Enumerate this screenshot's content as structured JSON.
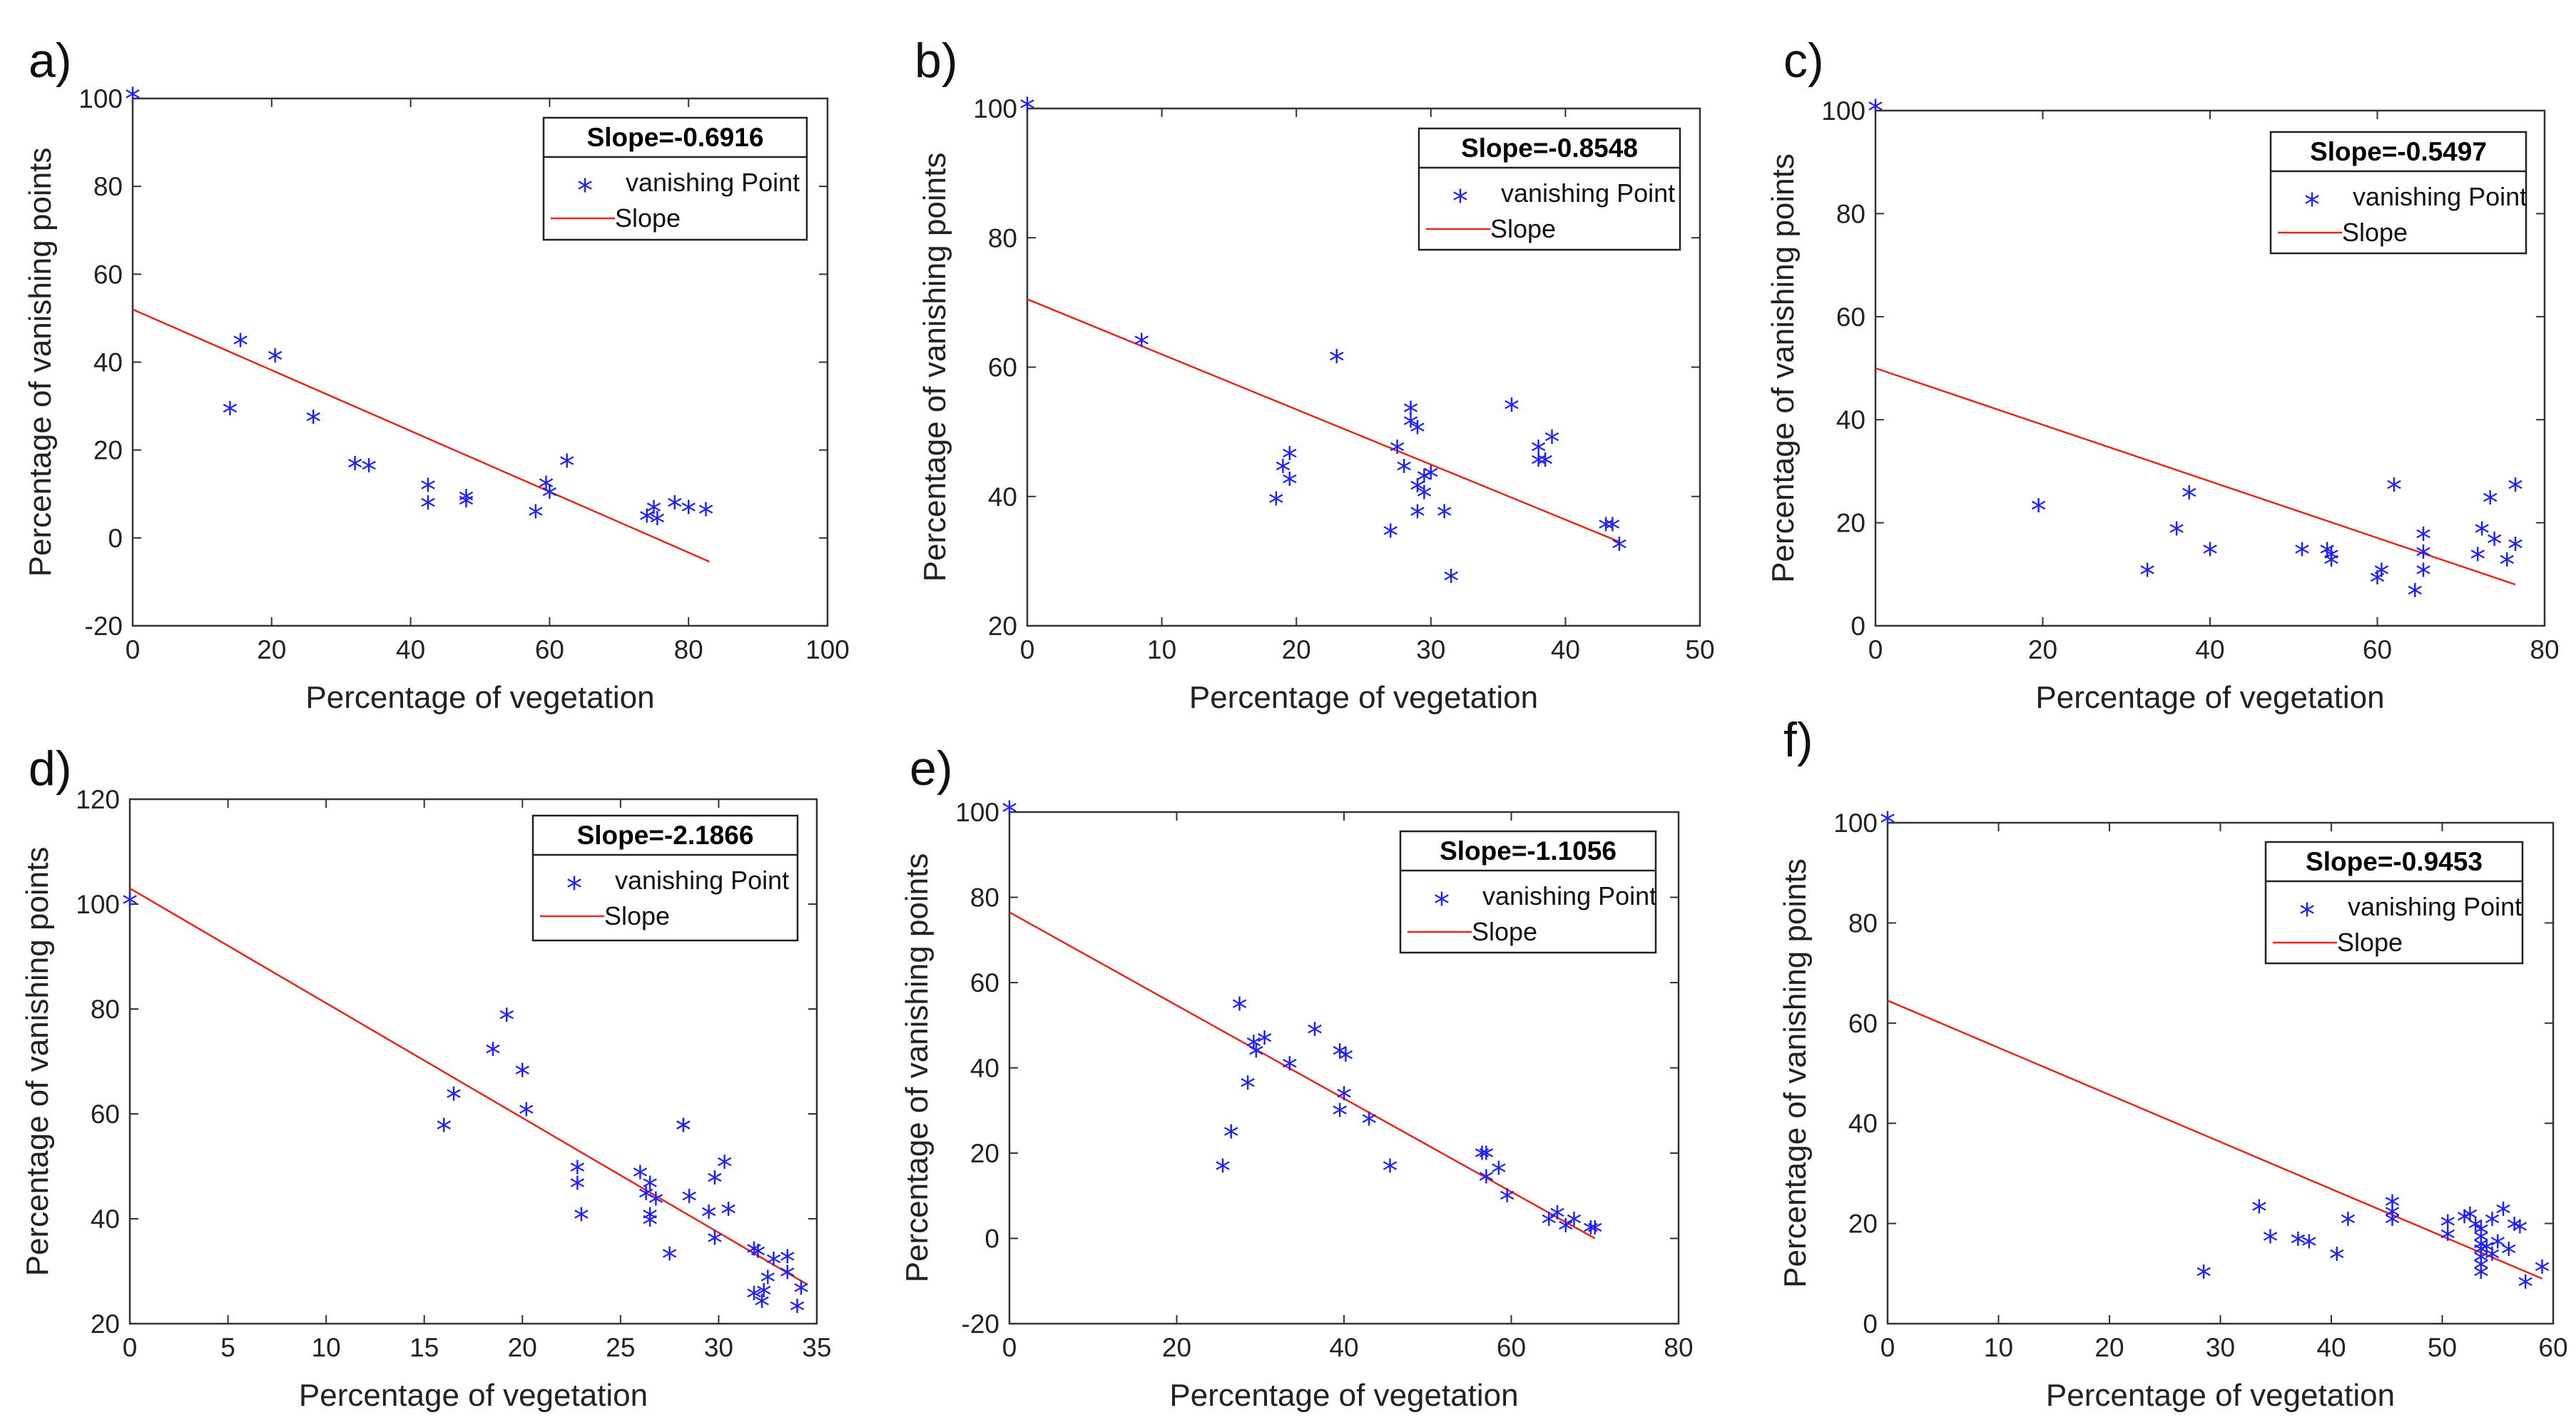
{
  "figure_description": "Six scatter plots (a-f) of percentage of vanishing points vs percentage of vegetation with fitted slope lines",
  "colors": {
    "marker": "#1f1fff",
    "fit_line": "#e8271c",
    "axes": "#333333"
  },
  "chart_data": [
    {
      "type": "scatter",
      "panel": "a)",
      "title": "",
      "xlabel": "Percentage of vegetation",
      "ylabel": "Percentage of vanishing points",
      "xlim": [
        0,
        100
      ],
      "ylim": [
        -20,
        100
      ],
      "xticks": [
        0,
        20,
        40,
        60,
        80,
        100
      ],
      "yticks": [
        -20,
        0,
        20,
        40,
        60,
        80,
        100
      ],
      "legend_title": "Slope=-0.6916",
      "legend_marker_label": "vanishing Point",
      "legend_line_label": "Slope",
      "fit_line": {
        "x": [
          0,
          83
        ],
        "y": [
          52,
          -5.4
        ]
      },
      "points": [
        [
          0,
          100
        ],
        [
          14,
          28.5
        ],
        [
          15.5,
          44
        ],
        [
          20.5,
          40.5
        ],
        [
          26,
          26.5
        ],
        [
          32,
          16
        ],
        [
          34,
          15.5
        ],
        [
          42.5,
          11
        ],
        [
          42.5,
          7
        ],
        [
          48,
          8.5
        ],
        [
          48,
          7.5
        ],
        [
          58,
          5
        ],
        [
          59.5,
          11.5
        ],
        [
          60,
          9.5
        ],
        [
          62.5,
          16.5
        ],
        [
          74,
          4
        ],
        [
          75,
          6
        ],
        [
          75.5,
          3.5
        ],
        [
          78,
          7
        ],
        [
          80,
          6
        ],
        [
          82.5,
          5.5
        ]
      ]
    },
    {
      "type": "scatter",
      "panel": "b)",
      "title": "",
      "xlabel": "Percentage of vegetation",
      "ylabel": "Percentage of vanishing points",
      "xlim": [
        0,
        50
      ],
      "ylim": [
        20,
        100
      ],
      "xticks": [
        0,
        10,
        20,
        30,
        40,
        50
      ],
      "yticks": [
        20,
        40,
        60,
        80,
        100
      ],
      "legend_title": "Slope=-0.8548",
      "legend_marker_label": "vanishing Point",
      "legend_line_label": "Slope",
      "fit_line": {
        "x": [
          0,
          44
        ],
        "y": [
          70.5,
          33
        ]
      },
      "points": [
        [
          0,
          100
        ],
        [
          8.5,
          63.5
        ],
        [
          18.5,
          39
        ],
        [
          19,
          44
        ],
        [
          19.5,
          46
        ],
        [
          19.5,
          42
        ],
        [
          23,
          61
        ],
        [
          27,
          34
        ],
        [
          27.5,
          47
        ],
        [
          28,
          44
        ],
        [
          28.5,
          53
        ],
        [
          28.5,
          51
        ],
        [
          29,
          50
        ],
        [
          29,
          37
        ],
        [
          29,
          41
        ],
        [
          29.5,
          42.5
        ],
        [
          29.5,
          40
        ],
        [
          30,
          43
        ],
        [
          31,
          37
        ],
        [
          31.5,
          27
        ],
        [
          36,
          53.5
        ],
        [
          38,
          45
        ],
        [
          38,
          47
        ],
        [
          38.5,
          45
        ],
        [
          39,
          48.5
        ],
        [
          43,
          35
        ],
        [
          43.5,
          35
        ],
        [
          44,
          32
        ]
      ]
    },
    {
      "type": "scatter",
      "panel": "c)",
      "title": "",
      "xlabel": "Percentage of vegetation",
      "ylabel": "Percentage of vanishing points",
      "xlim": [
        0,
        80
      ],
      "ylim": [
        0,
        100
      ],
      "xticks": [
        0,
        20,
        40,
        60,
        80
      ],
      "yticks": [
        0,
        20,
        40,
        60,
        80,
        100
      ],
      "legend_title": "Slope=-0.5497",
      "legend_marker_label": "vanishing Point",
      "legend_line_label": "Slope",
      "fit_line": {
        "x": [
          0,
          76.5
        ],
        "y": [
          50,
          8
        ]
      },
      "points": [
        [
          0,
          100
        ],
        [
          19.5,
          22.5
        ],
        [
          32.5,
          10
        ],
        [
          36,
          18
        ],
        [
          37.5,
          25
        ],
        [
          40,
          14
        ],
        [
          51,
          14
        ],
        [
          54,
          14
        ],
        [
          54.5,
          13
        ],
        [
          54.5,
          12
        ],
        [
          60,
          8.5
        ],
        [
          60.5,
          10
        ],
        [
          62,
          26.5
        ],
        [
          64.5,
          6
        ],
        [
          65.5,
          17
        ],
        [
          65.5,
          13.5
        ],
        [
          65.5,
          10
        ],
        [
          72,
          13
        ],
        [
          72.5,
          18
        ],
        [
          73.5,
          24
        ],
        [
          74,
          16
        ],
        [
          75.5,
          12
        ],
        [
          76.5,
          15
        ],
        [
          76.5,
          26.5
        ]
      ]
    },
    {
      "type": "scatter",
      "panel": "d)",
      "title": "",
      "xlabel": "Percentage of vegetation",
      "ylabel": "Percentage of vanishing points",
      "xlim": [
        0,
        35
      ],
      "ylim": [
        20,
        120
      ],
      "xticks": [
        0,
        5,
        10,
        15,
        20,
        25,
        30,
        35
      ],
      "yticks": [
        20,
        40,
        60,
        80,
        100,
        120
      ],
      "legend_title": "Slope=-2.1866",
      "legend_marker_label": "vanishing Point",
      "legend_line_label": "Slope",
      "fit_line": {
        "x": [
          0,
          34.5
        ],
        "y": [
          103,
          27.5
        ]
      },
      "points": [
        [
          0,
          100
        ],
        [
          16,
          57
        ],
        [
          16.5,
          63
        ],
        [
          18.5,
          71.5
        ],
        [
          19.2,
          78
        ],
        [
          20,
          67.5
        ],
        [
          20.2,
          60
        ],
        [
          22.8,
          49
        ],
        [
          22.8,
          46
        ],
        [
          23,
          40
        ],
        [
          26,
          48
        ],
        [
          26.3,
          44
        ],
        [
          26.5,
          46
        ],
        [
          26.5,
          40
        ],
        [
          26.5,
          39
        ],
        [
          26.8,
          43
        ],
        [
          27.5,
          32.5
        ],
        [
          28.2,
          57
        ],
        [
          28.2,
          57
        ],
        [
          28.5,
          43.5
        ],
        [
          29.5,
          40.5
        ],
        [
          29.8,
          47
        ],
        [
          29.8,
          35.5
        ],
        [
          30.3,
          50
        ],
        [
          30.5,
          41
        ],
        [
          31.8,
          33.5
        ],
        [
          31.8,
          25
        ],
        [
          32,
          33
        ],
        [
          32.2,
          23.5
        ],
        [
          32.3,
          25.5
        ],
        [
          32.5,
          28
        ],
        [
          32.8,
          31.5
        ],
        [
          33.5,
          32
        ],
        [
          33.5,
          29
        ],
        [
          34,
          22.5
        ],
        [
          34.2,
          26
        ]
      ]
    },
    {
      "type": "scatter",
      "panel": "e)",
      "title": "",
      "xlabel": "Percentage of vegetation",
      "ylabel": "Percentage of vanishing points",
      "xlim": [
        0,
        80
      ],
      "ylim": [
        -20,
        100
      ],
      "xticks": [
        0,
        20,
        40,
        60,
        80
      ],
      "yticks": [
        -20,
        0,
        20,
        40,
        60,
        80,
        100
      ],
      "legend_title": "Slope=-1.1056",
      "legend_marker_label": "vanishing Point",
      "legend_line_label": "Slope",
      "fit_line": {
        "x": [
          0,
          70
        ],
        "y": [
          76.5,
          0
        ]
      },
      "points": [
        [
          0,
          100
        ],
        [
          25.5,
          16
        ],
        [
          26.5,
          24
        ],
        [
          27.5,
          54
        ],
        [
          28.5,
          35.5
        ],
        [
          29.2,
          45
        ],
        [
          29.5,
          43
        ],
        [
          30.5,
          46
        ],
        [
          33.5,
          40
        ],
        [
          36.5,
          48
        ],
        [
          39.5,
          43
        ],
        [
          39.5,
          29
        ],
        [
          40,
          33
        ],
        [
          40.2,
          42
        ],
        [
          43,
          27
        ],
        [
          45.5,
          16
        ],
        [
          56.5,
          19
        ],
        [
          57,
          19
        ],
        [
          57,
          13.5
        ],
        [
          58.5,
          15.5
        ],
        [
          59.5,
          9
        ],
        [
          64.5,
          3.5
        ],
        [
          65.5,
          5
        ],
        [
          66.5,
          2
        ],
        [
          67.5,
          3.5
        ],
        [
          69.5,
          1.5
        ],
        [
          70,
          1.5
        ]
      ]
    },
    {
      "type": "scatter",
      "panel": "f)",
      "title": "",
      "xlabel": "Percentage of vegetation",
      "ylabel": "Percentage of vanishing points",
      "xlim": [
        0,
        60
      ],
      "ylim": [
        0,
        100
      ],
      "xticks": [
        0,
        10,
        20,
        30,
        40,
        50,
        60
      ],
      "yticks": [
        0,
        20,
        40,
        60,
        80,
        100
      ],
      "legend_title": "Slope=-0.9453",
      "legend_marker_label": "vanishing Point",
      "legend_line_label": "Slope",
      "fit_line": {
        "x": [
          0,
          59
        ],
        "y": [
          64.5,
          9
        ]
      },
      "points": [
        [
          0,
          100
        ],
        [
          28.5,
          9.5
        ],
        [
          33.5,
          22.5
        ],
        [
          34.5,
          16.5
        ],
        [
          37,
          16
        ],
        [
          38,
          15.5
        ],
        [
          40.5,
          13
        ],
        [
          41.5,
          20
        ],
        [
          45.5,
          23.5
        ],
        [
          45.5,
          21.5
        ],
        [
          45.5,
          20
        ],
        [
          50.5,
          19.5
        ],
        [
          50.5,
          17
        ],
        [
          52,
          20.5
        ],
        [
          52.5,
          21
        ],
        [
          53,
          19
        ],
        [
          53.5,
          18
        ],
        [
          53.5,
          16.5
        ],
        [
          53.5,
          15
        ],
        [
          53.5,
          14
        ],
        [
          53.5,
          12.5
        ],
        [
          53.5,
          11
        ],
        [
          53.5,
          9.5
        ],
        [
          54,
          14.5
        ],
        [
          54.5,
          20
        ],
        [
          54.5,
          13
        ],
        [
          55,
          15.5
        ],
        [
          55.5,
          22
        ],
        [
          56,
          14
        ],
        [
          56.5,
          19
        ],
        [
          57,
          18.5
        ],
        [
          57.5,
          7.5
        ],
        [
          59,
          10.5
        ]
      ]
    }
  ]
}
